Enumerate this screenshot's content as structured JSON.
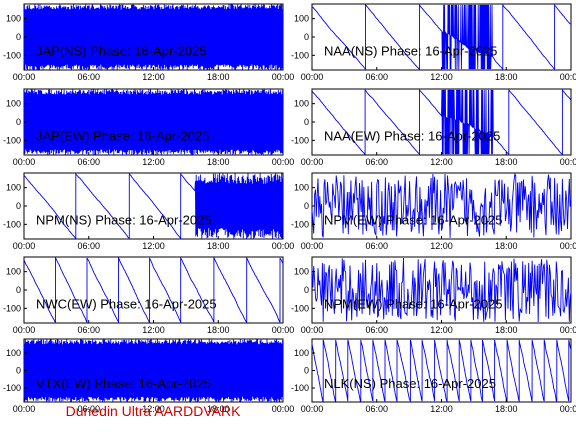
{
  "footer": "Dunedin Ultra AARDDVARK",
  "colors": {
    "trace": "#0000ff",
    "axes": "#000000",
    "footer": "#d40000"
  },
  "chart_data": [
    {
      "type": "line",
      "title": "JAP(NS) Phase: 16-Apr-2025",
      "style": "dense",
      "x_ticks": [
        "00:00",
        "06:00",
        "12:00",
        "18:00",
        "00:00"
      ],
      "y_ticks": [
        100,
        0,
        -100
      ],
      "ylim": [
        -180,
        180
      ]
    },
    {
      "type": "line",
      "title": "NAA(NS) Phase: 16-Apr-2025",
      "style": "mixed",
      "x_ticks": [
        "00:00",
        "06:00",
        "12:00",
        "18:00",
        "00:00"
      ],
      "y_ticks": [
        100,
        0,
        -100
      ],
      "ylim": [
        -180,
        180
      ]
    },
    {
      "type": "line",
      "title": "JAP(EW) Phase: 16-Apr-2025",
      "style": "dense",
      "x_ticks": [
        "00:00",
        "06:00",
        "12:00",
        "18:00",
        "00:00"
      ],
      "y_ticks": [
        100,
        0,
        -100
      ],
      "ylim": [
        -180,
        180
      ]
    },
    {
      "type": "line",
      "title": "NAA(EW) Phase: 16-Apr-2025",
      "style": "mixed",
      "x_ticks": [
        "00:00",
        "06:00",
        "12:00",
        "18:00",
        "00:00"
      ],
      "y_ticks": [
        100,
        0,
        -100
      ],
      "ylim": [
        -180,
        180
      ]
    },
    {
      "type": "line",
      "title": "NPM(NS) Phase: 16-Apr-2025",
      "style": "wrap-then-dense",
      "x_ticks": [
        "00:00",
        "06:00",
        "12:00",
        "18:00",
        "00:00"
      ],
      "y_ticks": [
        100,
        0,
        -100
      ],
      "ylim": [
        -180,
        180
      ]
    },
    {
      "type": "line",
      "title": "NPM(EW) Phase: 16-Apr-2025",
      "style": "noise",
      "x_ticks": [
        "00:00",
        "06:00",
        "12:00",
        "18:00",
        "00:00"
      ],
      "y_ticks": [
        100,
        0,
        -100
      ],
      "ylim": [
        -180,
        180
      ]
    },
    {
      "type": "line",
      "title": "NWC(EW) Phase: 16-Apr-2025",
      "style": "wrap",
      "x_ticks": [
        "00:00",
        "06:00",
        "12:00",
        "18:00",
        "00:00"
      ],
      "y_ticks": [
        100,
        0,
        -100
      ],
      "ylim": [
        -180,
        180
      ]
    },
    {
      "type": "line",
      "title": "NPM(EW) Phase: 16-Apr-2025",
      "style": "noise",
      "x_ticks": [
        "00:00",
        "06:00",
        "12:00",
        "18:00",
        "00:00"
      ],
      "y_ticks": [
        100,
        0,
        -100
      ],
      "ylim": [
        -180,
        180
      ]
    },
    {
      "type": "line",
      "title": "VTX(EW) Phase: 16-Apr-2025",
      "style": "dense",
      "x_ticks": [
        "00:00",
        "06:00",
        "12:00",
        "18:00",
        "00:00"
      ],
      "y_ticks": [
        100,
        0,
        -100
      ],
      "ylim": [
        -180,
        180
      ]
    },
    {
      "type": "line",
      "title": "NLK(NS) Phase: 16-Apr-2025",
      "style": "fast-wrap",
      "x_ticks": [
        "00:00",
        "06:00",
        "12:00",
        "18:00",
        "00:00"
      ],
      "y_ticks": [
        100,
        0,
        -100
      ],
      "ylim": [
        -180,
        180
      ]
    }
  ]
}
